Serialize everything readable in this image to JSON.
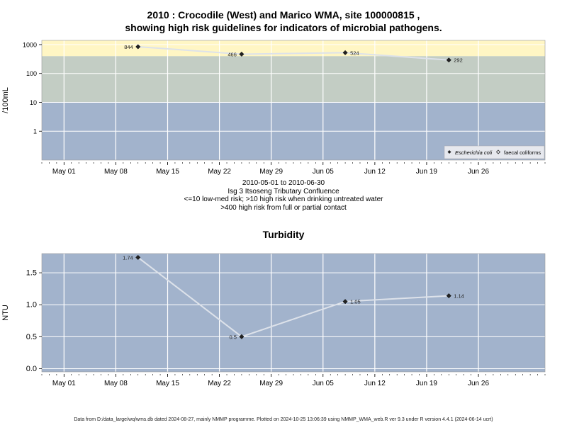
{
  "chart_data": [
    {
      "type": "line",
      "title_line1": "2010 : Crocodile (West) and Marico WMA, site 100000815 ,",
      "title_line2": "showing high risk guidelines for indicators of microbial pathogens.",
      "ylabel": "/100mL",
      "yscale": "log",
      "yticks": [
        1,
        10,
        100,
        1000
      ],
      "ytick_labels": [
        "1",
        "10",
        "100",
        "1000"
      ],
      "x_tick_labels": [
        "May 01",
        "May 08",
        "May 15",
        "May 22",
        "May 29",
        "Jun 05",
        "Jun 12",
        "Jun 19",
        "Jun 26"
      ],
      "x_tick_dates": [
        "2010-05-01",
        "2010-05-08",
        "2010-05-15",
        "2010-05-22",
        "2010-05-29",
        "2010-06-05",
        "2010-06-12",
        "2010-06-19",
        "2010-06-26"
      ],
      "xlim": [
        "2010-04-28",
        "2010-07-05"
      ],
      "bands": [
        {
          "from": 0.1,
          "to": 10,
          "color": "#a2b3cc"
        },
        {
          "from": 10,
          "to": 400,
          "color": "#c3cdc4"
        },
        {
          "from": 400,
          "to": 1400,
          "color": "#fff6c4"
        }
      ],
      "series": [
        {
          "name": "Escherichia coli",
          "x": [
            "2010-05-11",
            "2010-05-25",
            "2010-06-08",
            "2010-06-22"
          ],
          "values": [
            844,
            466,
            524,
            292
          ],
          "labels": [
            "844",
            "466",
            "524",
            "292"
          ]
        }
      ],
      "legend": {
        "position": "bottom-right",
        "entries": [
          "Escherichia coli",
          "faecal coliforms"
        ]
      },
      "subtitle_lines": [
        "2010-05-01 to 2010-06-30",
        "Isg 3 Itsoseng Tributary Confluence",
        "<=10 low-med risk; >10 high risk when drinking untreated water",
        ">400 high risk from full or partial contact"
      ]
    },
    {
      "type": "line",
      "title": "Turbidity",
      "ylabel": "NTU",
      "ylim": [
        -0.05,
        1.8
      ],
      "yticks": [
        0,
        0.5,
        1,
        1.5
      ],
      "ytick_labels": [
        "0.0",
        "0.5",
        "1.0",
        "1.5"
      ],
      "x_tick_labels": [
        "May 01",
        "May 08",
        "May 15",
        "May 22",
        "May 29",
        "Jun 05",
        "Jun 12",
        "Jun 19",
        "Jun 26"
      ],
      "x_tick_dates": [
        "2010-05-01",
        "2010-05-08",
        "2010-05-15",
        "2010-05-22",
        "2010-05-29",
        "2010-06-05",
        "2010-06-12",
        "2010-06-19",
        "2010-06-26"
      ],
      "xlim": [
        "2010-04-28",
        "2010-07-05"
      ],
      "background": "#a2b3cc",
      "series": [
        {
          "x": [
            "2010-05-11",
            "2010-05-25",
            "2010-06-08",
            "2010-06-22"
          ],
          "values": [
            1.74,
            0.5,
            1.05,
            1.14
          ],
          "labels": [
            "1.74",
            "0.5",
            "1.05",
            "1.14"
          ]
        }
      ]
    }
  ],
  "footer": "Data from D:/data_large/wq/wms.db dated 2024-08-27, mainly NMMP programme. Plotted on 2024-10-25 13:06:39 using NMMP_WMA_web.R ver 9.3 under R version 4.4.1 (2024-06-14 ucrt)"
}
